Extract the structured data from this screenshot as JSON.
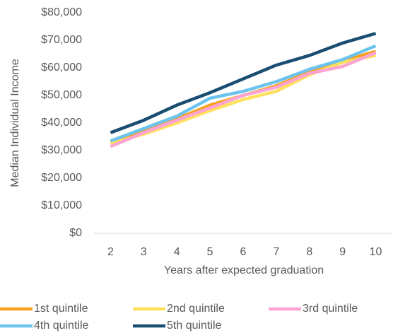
{
  "chart_data": {
    "type": "line",
    "y_label": "Median Individual Income",
    "x_label": "Years after expected graduation",
    "categories": [
      "2",
      "3",
      "4",
      "5",
      "6",
      "7",
      "8",
      "9",
      "10"
    ],
    "series": [
      {
        "name": "1st quintile",
        "color": "#f5a21f",
        "values": [
          33000,
          37000,
          41500,
          46500,
          50000,
          53500,
          58500,
          62500,
          66000
        ]
      },
      {
        "name": "2nd quintile",
        "color": "#ffe15e",
        "values": [
          32500,
          36000,
          40000,
          44500,
          48500,
          51500,
          57500,
          62000,
          64500
        ]
      },
      {
        "name": "3rd quintile",
        "color": "#fda4d2",
        "values": [
          31500,
          36500,
          41000,
          45500,
          50000,
          53000,
          58000,
          60500,
          65500
        ]
      },
      {
        "name": "4th quintile",
        "color": "#6cc4ee",
        "values": [
          33500,
          38000,
          42500,
          49000,
          51500,
          55000,
          59500,
          63000,
          68000
        ]
      },
      {
        "name": "5th quintile",
        "color": "#1a4d72",
        "values": [
          36500,
          41000,
          46500,
          51000,
          56000,
          61000,
          64500,
          69000,
          72500
        ]
      }
    ],
    "ylim": [
      0,
      80000
    ],
    "yticks": [
      {
        "value": 0,
        "label": "$0"
      },
      {
        "value": 10000,
        "label": "$10,000"
      },
      {
        "value": 20000,
        "label": "$20,000"
      },
      {
        "value": 30000,
        "label": "$30,000"
      },
      {
        "value": 40000,
        "label": "$40,000"
      },
      {
        "value": 50000,
        "label": "$50,000"
      },
      {
        "value": 60000,
        "label": "$60,000"
      },
      {
        "value": 70000,
        "label": "$70,000"
      },
      {
        "value": 80000,
        "label": "$80,000"
      }
    ],
    "grid": false,
    "legend": "bottom"
  }
}
